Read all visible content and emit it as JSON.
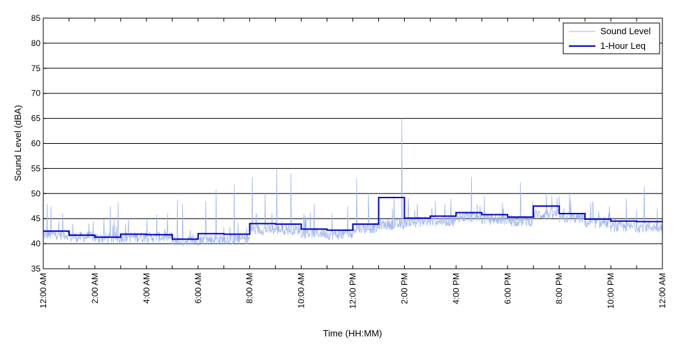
{
  "chart_data": {
    "type": "line",
    "title": "",
    "xlabel": "Time (HH:MM)",
    "ylabel": "Sound Level (dBA)",
    "ylim": [
      35,
      85
    ],
    "yticks": [
      35,
      40,
      45,
      50,
      55,
      60,
      65,
      70,
      75,
      80,
      85
    ],
    "xlim_hours": [
      0,
      24
    ],
    "x_tick_labels": [
      "12:00 AM",
      "2:00 AM",
      "4:00 AM",
      "6:00 AM",
      "8:00 AM",
      "10:00 AM",
      "12:00 PM",
      "2:00 PM",
      "4:00 PM",
      "6:00 PM",
      "8:00 PM",
      "10:00 PM",
      "12:00 AM"
    ],
    "grid": "horizontal",
    "legend_position": "top-right",
    "series": [
      {
        "name": "Sound Level",
        "color": "#9fb6f0",
        "style": "thin"
      },
      {
        "name": "1-Hour Leq",
        "color": "#0000cc",
        "style": "step",
        "hours": [
          0,
          1,
          2,
          3,
          4,
          5,
          6,
          7,
          8,
          9,
          10,
          11,
          12,
          13,
          14,
          15,
          16,
          17,
          18,
          19,
          20,
          21,
          22,
          23
        ],
        "values": [
          42.5,
          41.7,
          41.3,
          41.9,
          41.8,
          40.9,
          42.0,
          41.9,
          44.0,
          43.9,
          42.9,
          42.7,
          43.9,
          49.2,
          45.1,
          45.5,
          46.2,
          45.8,
          45.3,
          47.5,
          46.0,
          44.9,
          44.5,
          44.4
        ]
      }
    ]
  },
  "sound_level_profile": {
    "base": [
      41.5,
      41.0,
      40.8,
      41.0,
      41.0,
      40.2,
      40.5,
      40.6,
      42.5,
      42.5,
      41.8,
      41.5,
      42.8,
      43.5,
      44.0,
      44.2,
      45.0,
      44.5,
      44.2,
      45.5,
      44.8,
      43.8,
      43.0,
      43.0
    ],
    "spikes": [
      [
        0.15,
        48
      ],
      [
        0.3,
        47.5
      ],
      [
        0.75,
        46
      ],
      [
        1.15,
        44
      ],
      [
        2.6,
        47.5
      ],
      [
        2.9,
        48.3
      ],
      [
        3.3,
        45
      ],
      [
        4.4,
        45.8
      ],
      [
        5.2,
        48.8
      ],
      [
        5.4,
        48
      ],
      [
        6.3,
        48.5
      ],
      [
        6.7,
        50.8
      ],
      [
        7.4,
        51.8
      ],
      [
        8.1,
        53.3
      ],
      [
        8.6,
        50
      ],
      [
        9.05,
        55
      ],
      [
        9.6,
        54
      ],
      [
        10.5,
        48
      ],
      [
        11.2,
        46
      ],
      [
        11.8,
        47.5
      ],
      [
        12.15,
        53
      ],
      [
        12.6,
        50
      ],
      [
        13.6,
        49.5
      ],
      [
        13.9,
        65
      ],
      [
        14.5,
        48
      ],
      [
        15.2,
        48.5
      ],
      [
        15.8,
        49
      ],
      [
        16.6,
        53.3
      ],
      [
        17.1,
        49.5
      ],
      [
        18.5,
        52.3
      ],
      [
        19.5,
        50
      ],
      [
        20.0,
        49.5
      ],
      [
        20.4,
        50.3
      ],
      [
        21.3,
        48.5
      ],
      [
        22.6,
        49
      ],
      [
        23.3,
        51.4
      ],
      [
        23.8,
        47
      ]
    ]
  }
}
